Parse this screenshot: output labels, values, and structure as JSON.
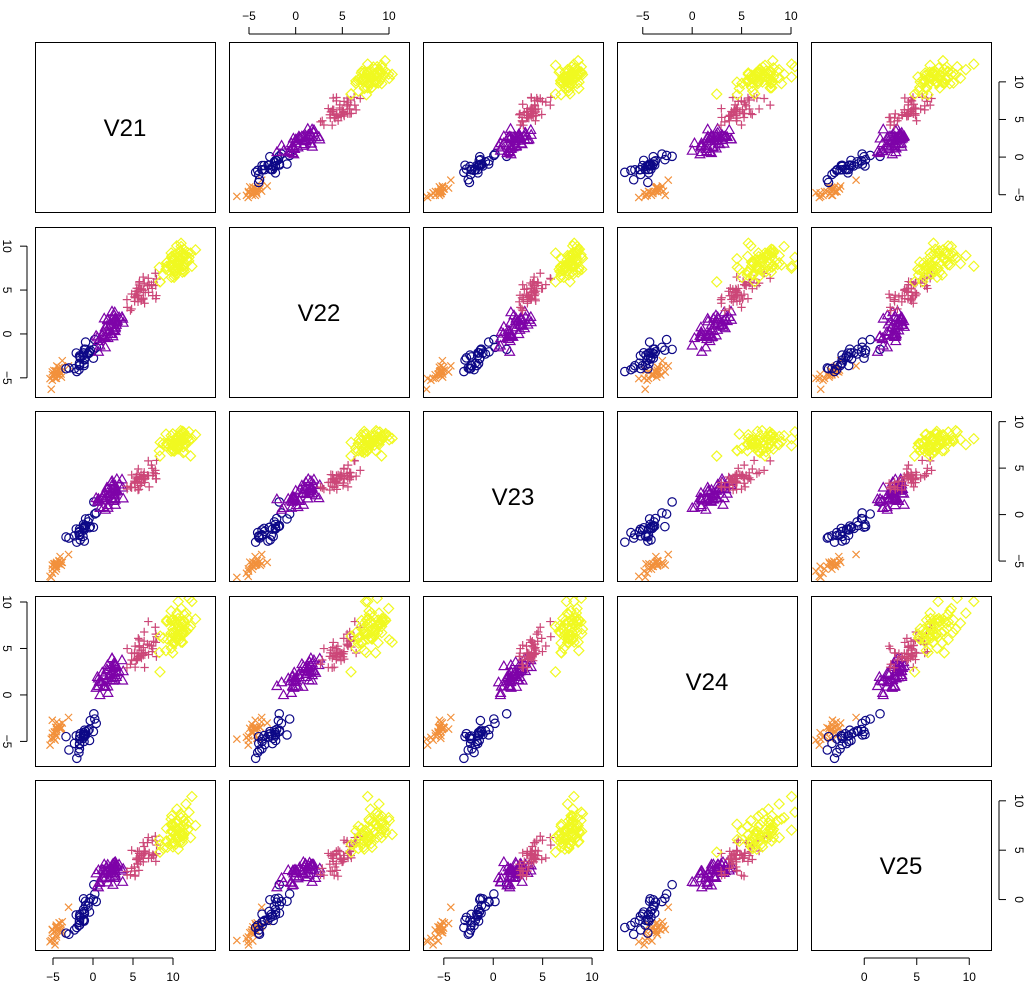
{
  "chart_data": {
    "type": "scatter",
    "subtype": "pairs-scatterplot-matrix",
    "variables": [
      "V21",
      "V22",
      "V23",
      "V24",
      "V25"
    ],
    "title": "",
    "xlabel": "",
    "ylabel": "",
    "grid": false,
    "legend": "none",
    "axis_ranges": {
      "V21": [
        -6.5,
        14.5
      ],
      "V22": [
        -6.5,
        11.5
      ],
      "V23": [
        -6.5,
        10.5
      ],
      "V24": [
        -7,
        10
      ],
      "V25": [
        -4.5,
        11.5
      ]
    },
    "axis_ticks": {
      "V21": [
        -5,
        0,
        5,
        10
      ],
      "V22": [
        -5,
        0,
        5,
        10
      ],
      "V23": [
        -5,
        0,
        5,
        10
      ],
      "V24": [
        -5,
        0,
        5,
        10
      ],
      "V25": [
        0,
        5,
        10
      ]
    },
    "groups": [
      {
        "marker": "x",
        "color": "#F2913C",
        "n": 25,
        "center": {
          "V21": -4.5,
          "V22": -4.5,
          "V23": -5.5,
          "V24": -3.8,
          "V25": -3.2
        }
      },
      {
        "marker": "circle",
        "color": "#0D0887",
        "n": 30,
        "center": {
          "V21": -1.0,
          "V22": -2.5,
          "V23": -1.2,
          "V24": -4.3,
          "V25": -1.3
        }
      },
      {
        "marker": "triangle",
        "color": "#7E03A8",
        "n": 45,
        "center": {
          "V21": 2.0,
          "V22": 0.5,
          "V23": 2.0,
          "V24": 2.0,
          "V25": 2.7
        }
      },
      {
        "marker": "plus",
        "color": "#CC4778",
        "n": 45,
        "center": {
          "V21": 6.0,
          "V22": 4.5,
          "V23": 3.8,
          "V24": 4.5,
          "V25": 4.0
        }
      },
      {
        "marker": "diamond",
        "color": "#F0F921",
        "n": 60,
        "center": {
          "V21": 10.5,
          "V22": 8.0,
          "V23": 7.8,
          "V24": 7.0,
          "V25": 7.0
        }
      }
    ]
  }
}
